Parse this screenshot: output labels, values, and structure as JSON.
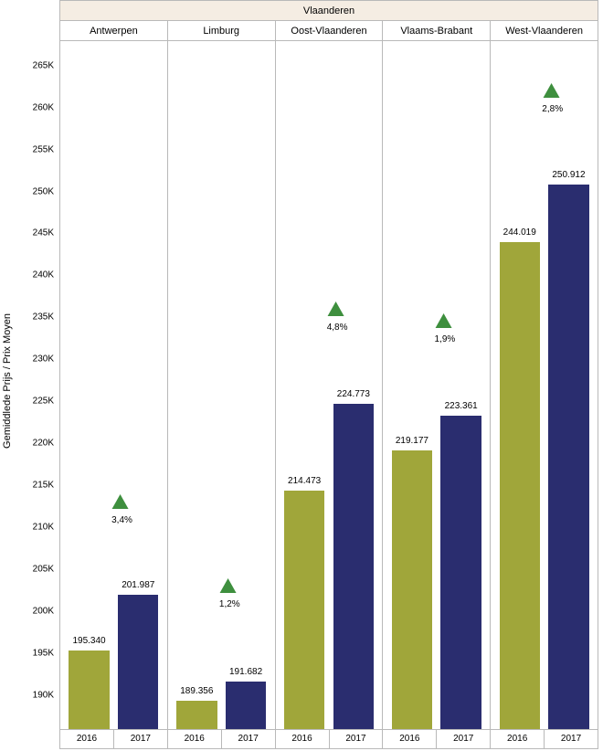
{
  "chart": {
    "type": "bar",
    "header_main": "Vlaanderen",
    "provinces": [
      "Antwerpen",
      "Limburg",
      "Oost-Vlaanderen",
      "Vlaams-Brabant",
      "West-Vlaanderen"
    ],
    "years": [
      "2016",
      "2017"
    ],
    "y_axis_label": "Gemiddlede Prijs / Prix Moyen",
    "ylim_min": 186000,
    "ylim_max": 268000,
    "ytick_step": 5000,
    "yticks": [
      265,
      260,
      255,
      250,
      245,
      240,
      235,
      230,
      225,
      220,
      215,
      210,
      205,
      200,
      195,
      190
    ],
    "ytick_labels": [
      "265K",
      "260K",
      "255K",
      "250K",
      "245K",
      "240K",
      "235K",
      "230K",
      "225K",
      "220K",
      "215K",
      "210K",
      "205K",
      "200K",
      "195K",
      "190K"
    ],
    "bar_colors": {
      "2016": "#a0a63a",
      "2017": "#2a2d6f"
    },
    "background_color": "#ffffff",
    "header_bg": "#f5ede3",
    "border_color": "#b9b9b9",
    "triangle_color": "#3e8f3e",
    "label_color": "#000000",
    "label_fontsize": 10,
    "header_fontsize": 11,
    "panels": [
      {
        "name": "Antwerpen",
        "values": {
          "2016": 195340,
          "2017": 201987
        },
        "value_labels": {
          "2016": "195.340",
          "2017": "201.987"
        },
        "pct_change": "3,4%",
        "triangle_y": 214000,
        "pct_y": 211500
      },
      {
        "name": "Limburg",
        "values": {
          "2016": 189356,
          "2017": 191682
        },
        "value_labels": {
          "2016": "189.356",
          "2017": "191.682"
        },
        "pct_change": "1,2%",
        "triangle_y": 204000,
        "pct_y": 201500
      },
      {
        "name": "Oost-Vlaanderen",
        "values": {
          "2016": 214473,
          "2017": 224773
        },
        "value_labels": {
          "2016": "214.473",
          "2017": "224.773"
        },
        "pct_change": "4,8%",
        "triangle_y": 237000,
        "pct_y": 234500
      },
      {
        "name": "Vlaams-Brabant",
        "values": {
          "2016": 219177,
          "2017": 223361
        },
        "value_labels": {
          "2016": "219.177",
          "2017": "223.361"
        },
        "pct_change": "1,9%",
        "triangle_y": 235500,
        "pct_y": 233000
      },
      {
        "name": "West-Vlaanderen",
        "values": {
          "2016": 244019,
          "2017": 250912
        },
        "value_labels": {
          "2016": "244.019",
          "2017": "250.912"
        },
        "pct_change": "2,8%",
        "triangle_y": 263000,
        "pct_y": 260500
      }
    ]
  }
}
